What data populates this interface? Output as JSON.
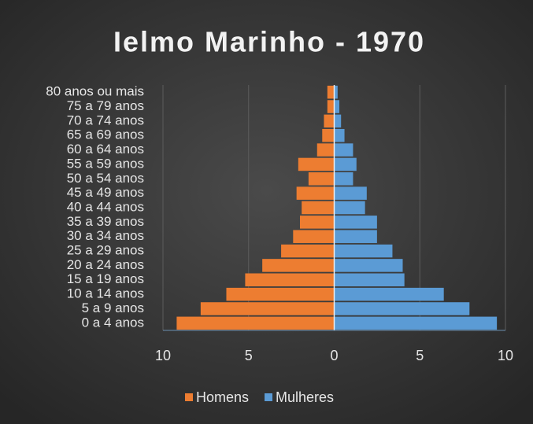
{
  "chart_data": {
    "type": "pyramid",
    "title": "Ielmo Marinho - 1970",
    "categories": [
      "0 a 4 anos",
      "5 a 9 anos",
      "10 a 14 anos",
      "15 a 19 anos",
      "20 a 24 anos",
      "25 a 29 anos",
      "30 a 34 anos",
      "35 a 39 anos",
      "40 a 44 anos",
      "45 a 49 anos",
      "50 a 54 anos",
      "55 a 59 anos",
      "60 a 64 anos",
      "65 a 69 anos",
      "70 a 74 anos",
      "75 a 79 anos",
      "80 anos ou mais"
    ],
    "series": [
      {
        "name": "Homens",
        "color": "#ed7d31",
        "values": [
          -9.2,
          -7.8,
          -6.3,
          -5.2,
          -4.2,
          -3.1,
          -2.4,
          -2.0,
          -1.9,
          -2.2,
          -1.5,
          -2.1,
          -1.0,
          -0.7,
          -0.6,
          -0.4,
          -0.4
        ]
      },
      {
        "name": "Mulheres",
        "color": "#5b9bd5",
        "values": [
          9.5,
          7.9,
          6.4,
          4.1,
          4.0,
          3.4,
          2.5,
          2.5,
          1.8,
          1.9,
          1.1,
          1.3,
          1.1,
          0.6,
          0.4,
          0.3,
          0.2
        ]
      }
    ],
    "xlim": [
      -10,
      10
    ],
    "xticks": [
      {
        "value": -10,
        "label": "10"
      },
      {
        "value": -5,
        "label": "5"
      },
      0,
      5,
      10
    ],
    "grid": true,
    "legend": "bottom"
  }
}
